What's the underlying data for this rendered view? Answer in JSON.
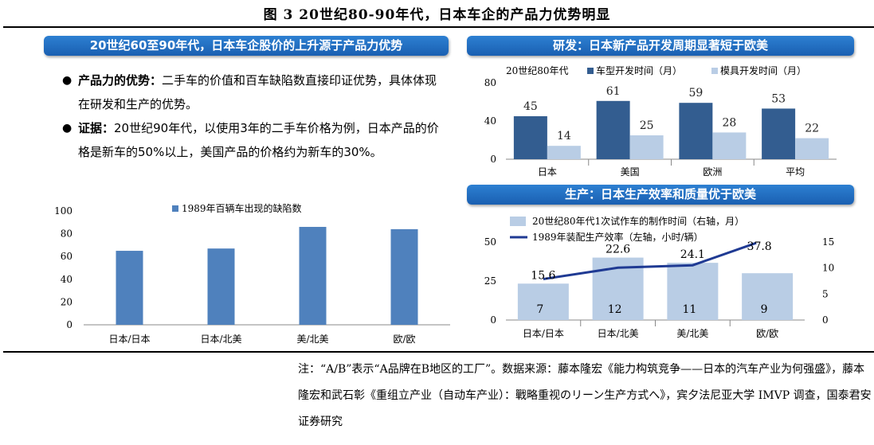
{
  "figure_title": "图 3 20世纪80-90年代，日本车企的产品力优势明显",
  "left_panel": {
    "title": "20世纪60至90年代，日本车企股价的上升源于产品力优势",
    "bullets": [
      {
        "bold": "产品力的优势：",
        "text": "二手车的价值和百车缺陷数直接印证优势，具体体现在研发和生产的优势。"
      },
      {
        "bold": "证据：",
        "text": "20世纪90年代，以使用3年的二手车价格为例，日本产品的价格是新车的50%以上，美国产品的价格约为新车的30%。"
      }
    ]
  },
  "rd_panel_title": "研发：日本新产品开发周期显著短于欧美",
  "prod_panel_title": "生产：日本生产效率和质量优于欧美",
  "note": "注：“A/B”表示“A品牌在B地区的工厂”。数据来源：藤本隆宏《能力构筑竞争——日本的汽车产业为何强盛》，藤本隆宏和武石彰《重组立产业（自动车产业）：戰略重视のリーン生产方式へ》，宾夕法尼亚大学 IMVP 调查，国泰君安证券研究",
  "chart_data": [
    {
      "id": "defects",
      "type": "bar",
      "categories": [
        "日本/日本",
        "日本/北美",
        "美/北美",
        "欧/欧"
      ],
      "series": [
        {
          "name": "1989年百辆车出现的缺陷数",
          "values": [
            65,
            67,
            86,
            84
          ],
          "color": "#4f81bd"
        }
      ],
      "ylim": [
        0,
        100
      ],
      "yticks": [
        0,
        20,
        40,
        60,
        80,
        100
      ],
      "legend": "top"
    },
    {
      "id": "rd",
      "type": "bar",
      "categories": [
        "日本",
        "美国",
        "欧洲",
        "平均"
      ],
      "legend_title": "20世纪80年代",
      "series": [
        {
          "name": "车型开发时间（月）",
          "values": [
            45,
            61,
            59,
            53
          ],
          "color": "#335d90"
        },
        {
          "name": "模具开发时间（月）",
          "values": [
            14,
            25,
            28,
            22
          ],
          "color": "#b9cde5"
        }
      ],
      "ylim": [
        0,
        80
      ],
      "yticks": [
        0,
        40,
        80
      ],
      "legend": "top"
    },
    {
      "id": "production",
      "type": "bar",
      "categories": [
        "日本/日本",
        "日本/北美",
        "美/北美",
        "欧/欧"
      ],
      "series": [
        {
          "name": "20世纪80年代1次试作车的制作时间（右轴，月）",
          "type": "bar",
          "axis": "right",
          "values": [
            7,
            12,
            11,
            9
          ],
          "color": "#b9cde5"
        },
        {
          "name": "1989年装配生产效率（左轴，小时/辆）",
          "type": "line",
          "axis": "left",
          "values": [
            15.6,
            22.6,
            24.1,
            37.8
          ],
          "color": "#1f3a93"
        }
      ],
      "ylim_left": [
        0,
        50
      ],
      "yticks_left": [
        0,
        25,
        50
      ],
      "ylim_right": [
        0,
        15
      ],
      "yticks_right": [
        0,
        5,
        10,
        15
      ],
      "legend": "top"
    }
  ]
}
